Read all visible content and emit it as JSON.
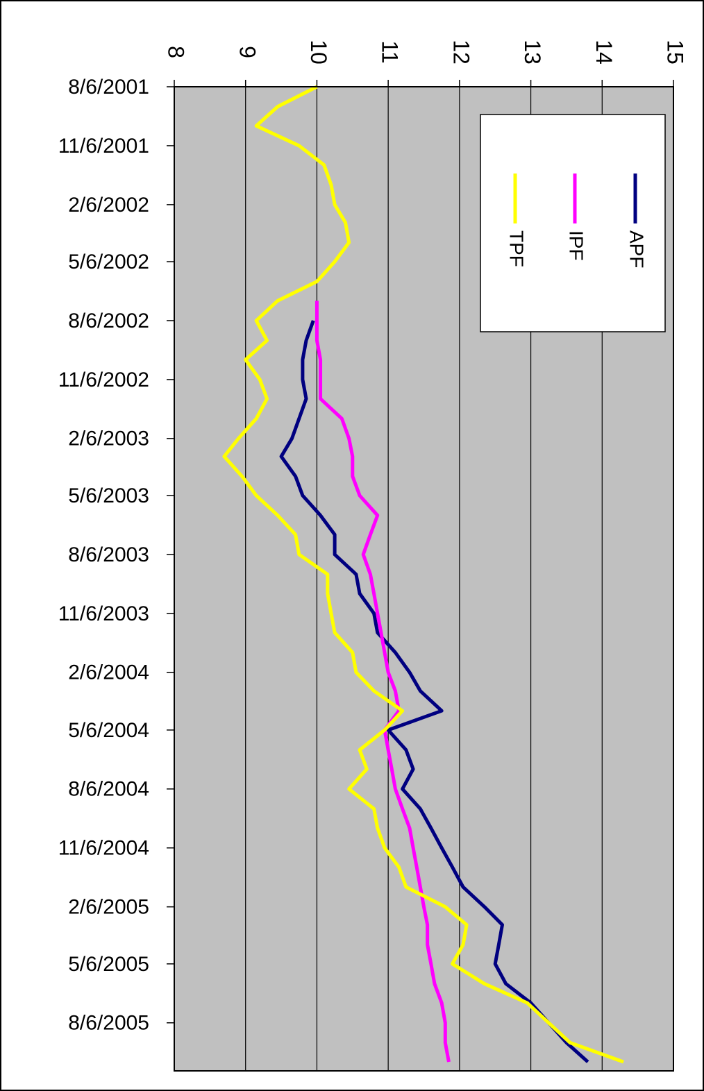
{
  "chart_data": {
    "type": "line",
    "x": [
      "8/6/2001",
      "9/6/2001",
      "10/6/2001",
      "11/6/2001",
      "12/6/2001",
      "1/6/2002",
      "2/6/2002",
      "3/6/2002",
      "4/6/2002",
      "5/6/2002",
      "6/6/2002",
      "7/6/2002",
      "8/6/2002",
      "9/6/2002",
      "10/6/2002",
      "11/6/2002",
      "12/6/2002",
      "1/6/2003",
      "2/6/2003",
      "3/6/2003",
      "4/6/2003",
      "5/6/2003",
      "6/6/2003",
      "7/6/2003",
      "8/6/2003",
      "9/6/2003",
      "10/6/2003",
      "11/6/2003",
      "12/6/2003",
      "1/6/2004",
      "2/6/2004",
      "3/6/2004",
      "4/6/2004",
      "5/6/2004",
      "6/6/2004",
      "7/6/2004",
      "8/6/2004",
      "9/6/2004",
      "10/6/2004",
      "11/6/2004",
      "12/6/2004",
      "1/6/2005",
      "2/6/2005",
      "3/6/2005",
      "4/6/2005",
      "5/6/2005",
      "6/6/2005",
      "7/6/2005",
      "8/6/2005",
      "9/6/2005",
      "10/6/2005"
    ],
    "xlim": [
      "8/6/2001",
      "10/20/2005"
    ],
    "xticks": [
      "8/6/2001",
      "11/6/2001",
      "2/6/2002",
      "5/6/2002",
      "8/6/2002",
      "11/6/2002",
      "2/6/2003",
      "5/6/2003",
      "8/6/2003",
      "11/6/2003",
      "2/6/2004",
      "5/6/2004",
      "8/6/2004",
      "11/6/2004",
      "2/6/2005",
      "5/6/2005",
      "8/6/2005"
    ],
    "ylim": [
      8,
      15
    ],
    "yticks": [
      8,
      9,
      10,
      11,
      12,
      13,
      14,
      15
    ],
    "grid": true,
    "series": [
      {
        "name": "APF",
        "color": "#000080",
        "values": [
          null,
          null,
          null,
          null,
          null,
          null,
          null,
          null,
          null,
          null,
          null,
          null,
          9.95,
          9.85,
          9.8,
          9.8,
          9.85,
          9.75,
          9.65,
          9.5,
          9.7,
          9.8,
          10.05,
          10.25,
          10.25,
          10.55,
          10.6,
          10.8,
          10.85,
          11.1,
          11.3,
          11.45,
          11.75,
          11.0,
          11.25,
          11.35,
          11.2,
          11.45,
          11.6,
          11.75,
          11.9,
          12.05,
          12.35,
          12.6,
          12.55,
          12.5,
          12.65,
          13.0,
          13.25,
          13.5,
          13.8
        ]
      },
      {
        "name": "IPF",
        "color": "#ff00ff",
        "values": [
          null,
          null,
          null,
          null,
          null,
          null,
          null,
          null,
          null,
          null,
          null,
          10.0,
          10.0,
          10.0,
          10.05,
          10.05,
          10.05,
          10.35,
          10.45,
          10.5,
          10.5,
          10.6,
          10.85,
          10.75,
          10.65,
          10.75,
          10.8,
          10.85,
          10.9,
          10.95,
          11.0,
          11.1,
          11.15,
          10.95,
          11.0,
          11.05,
          11.1,
          11.2,
          11.3,
          11.35,
          11.4,
          11.45,
          11.5,
          11.55,
          11.55,
          11.6,
          11.65,
          11.75,
          11.8,
          11.8,
          11.85
        ]
      },
      {
        "name": "TPF",
        "color": "#ffff00",
        "values": [
          10.0,
          9.45,
          9.15,
          9.75,
          10.1,
          10.2,
          10.25,
          10.4,
          10.45,
          10.25,
          10.0,
          9.45,
          9.15,
          9.3,
          9.0,
          9.2,
          9.3,
          9.15,
          8.9,
          8.7,
          8.95,
          9.15,
          9.45,
          9.7,
          9.75,
          10.15,
          10.15,
          10.2,
          10.25,
          10.5,
          10.55,
          10.8,
          11.2,
          10.95,
          10.6,
          10.7,
          10.45,
          10.8,
          10.85,
          10.95,
          11.15,
          11.25,
          11.8,
          12.1,
          12.05,
          11.9,
          12.35,
          12.95,
          13.25,
          13.55,
          14.3
        ]
      }
    ]
  }
}
